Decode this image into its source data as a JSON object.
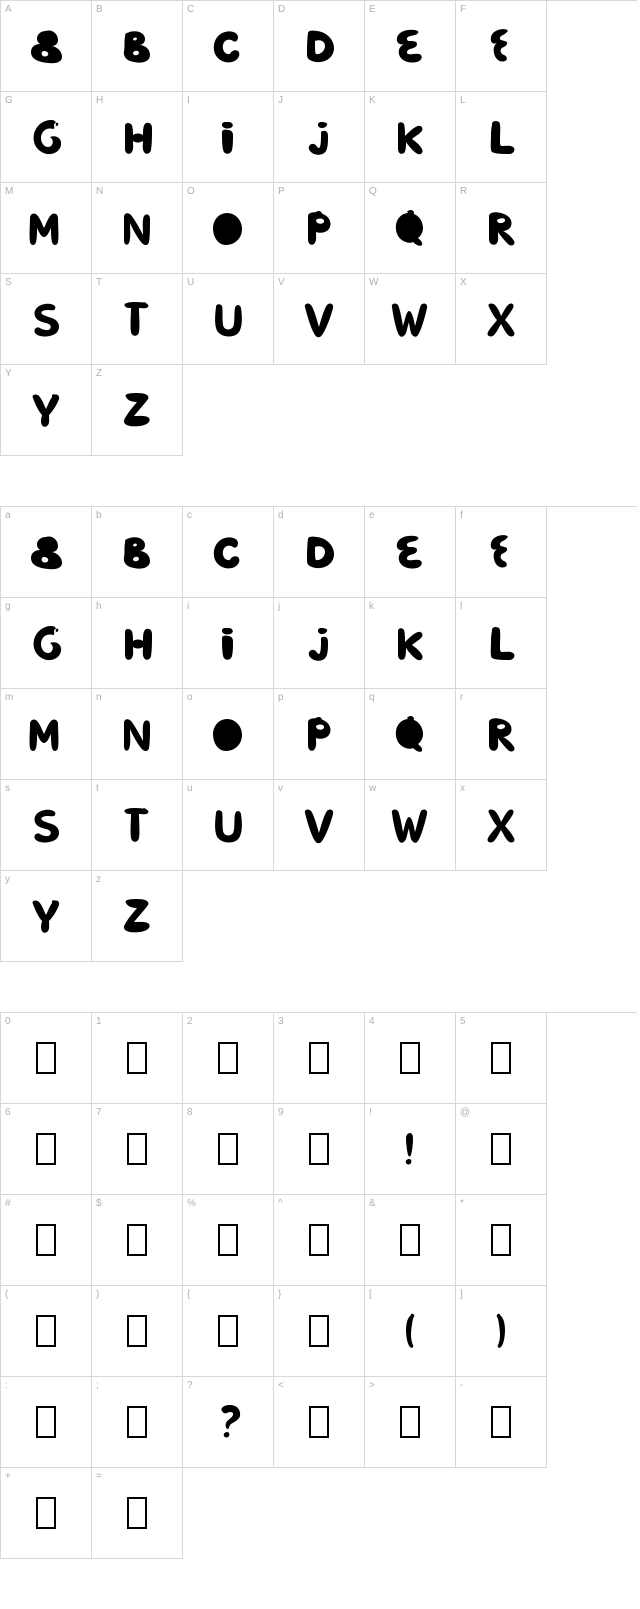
{
  "uppercase": {
    "labels": [
      "A",
      "B",
      "C",
      "D",
      "E",
      "F",
      "G",
      "H",
      "I",
      "J",
      "K",
      "L",
      "M",
      "N",
      "O",
      "P",
      "Q",
      "R",
      "S",
      "T",
      "U",
      "V",
      "W",
      "X",
      "Y",
      "Z"
    ]
  },
  "lowercase": {
    "labels": [
      "a",
      "b",
      "c",
      "d",
      "e",
      "f",
      "g",
      "h",
      "i",
      "j",
      "k",
      "l",
      "m",
      "n",
      "o",
      "p",
      "q",
      "r",
      "s",
      "t",
      "u",
      "v",
      "w",
      "x",
      "y",
      "z"
    ]
  },
  "symbols": {
    "labels": [
      "0",
      "1",
      "2",
      "3",
      "4",
      "5",
      "6",
      "7",
      "8",
      "9",
      "!",
      "@",
      "#",
      "$",
      "%",
      "^",
      "&",
      "*",
      "(",
      ")",
      "{",
      "}",
      "[",
      "]",
      ":",
      ";",
      "?",
      "<",
      ">",
      "-",
      "+",
      "="
    ],
    "defined": {
      "10": true,
      "22": true,
      "23": true,
      "26": true
    }
  },
  "style": {
    "cell_size": 91,
    "border_color": "#d8d8d8",
    "label_color": "#b0b0b0",
    "label_fontsize": 10,
    "glyph_color": "#000000",
    "background": "#ffffff"
  }
}
